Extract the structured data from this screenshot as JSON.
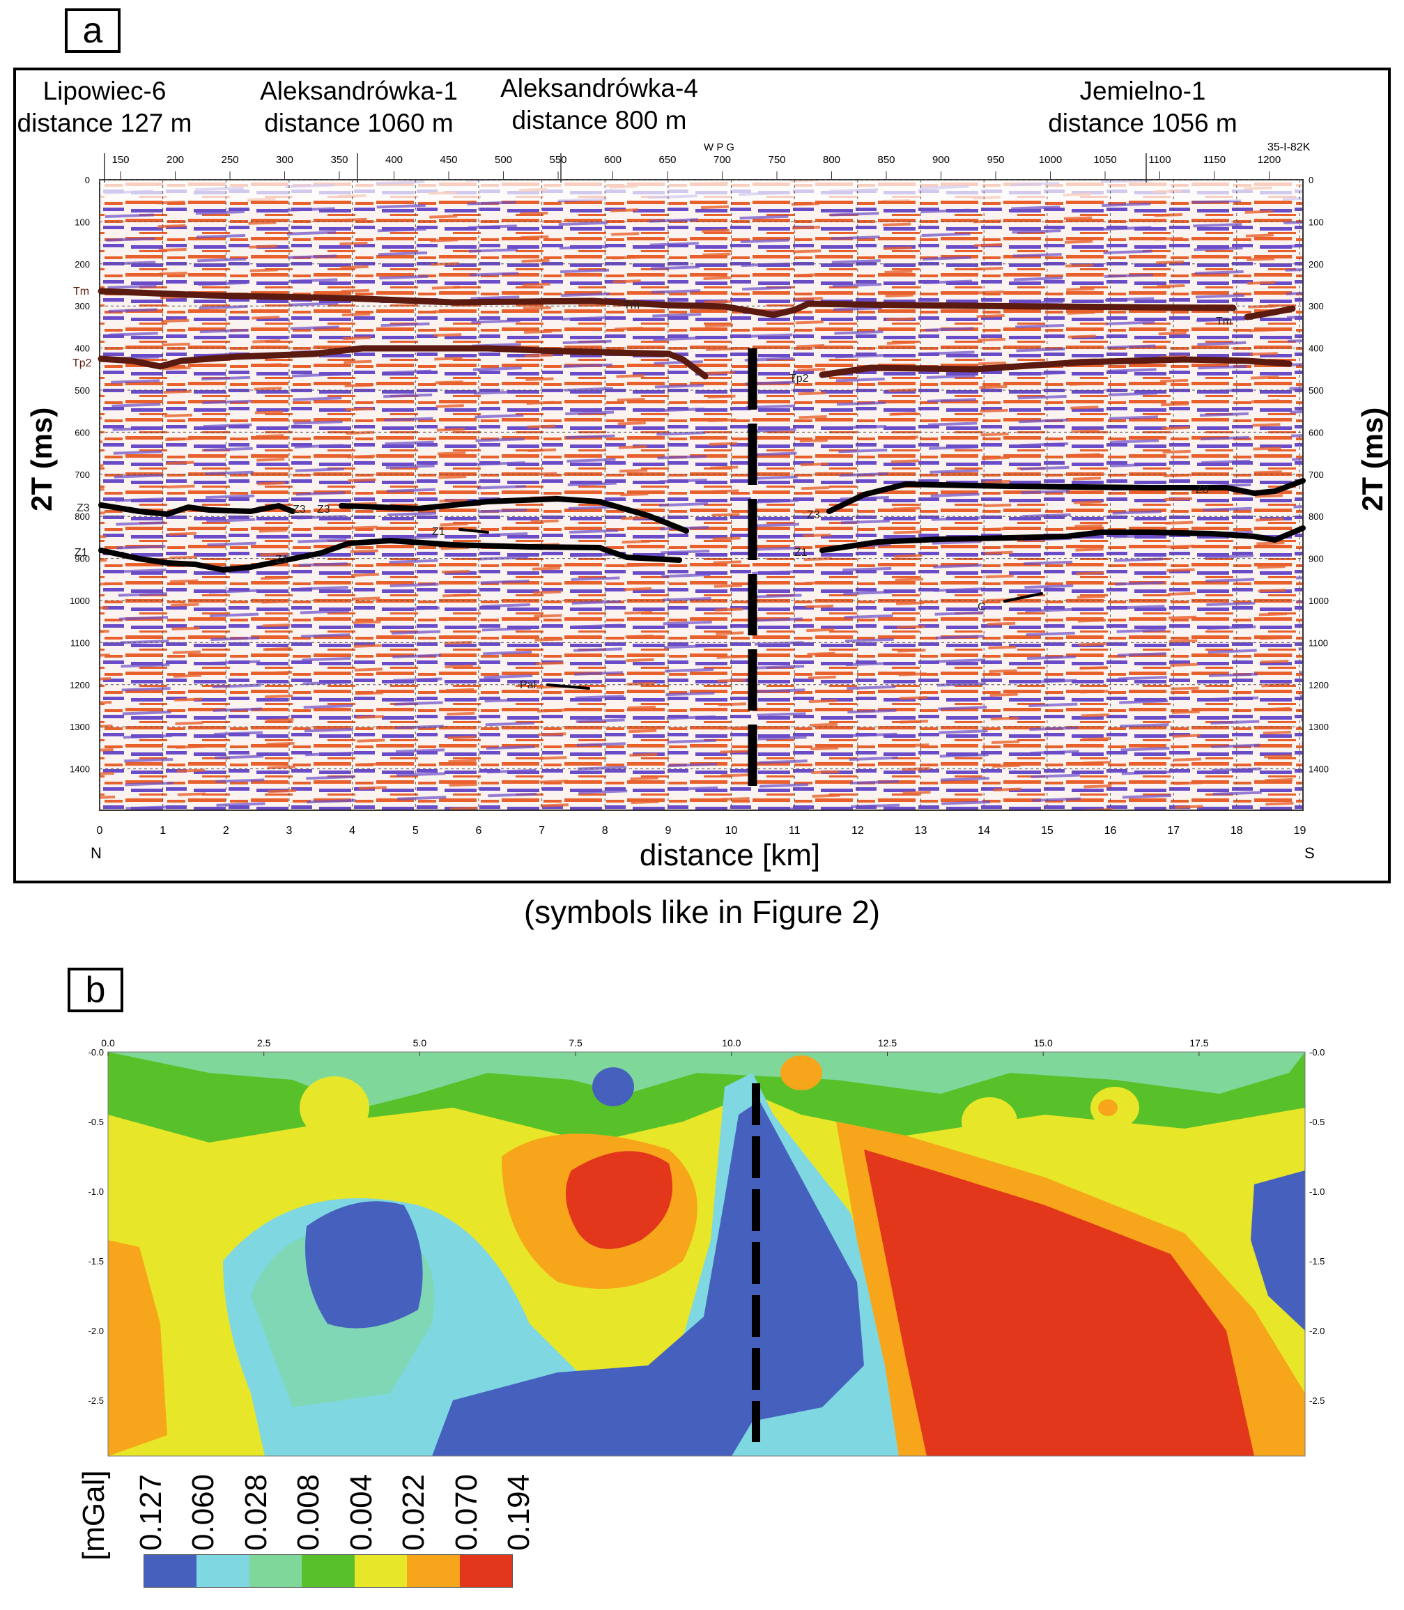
{
  "panel_a": {
    "tag": "a",
    "wells": [
      {
        "name": "Lipowiec-6",
        "distance": "distance 127 m"
      },
      {
        "name": "Aleksandrówka-1",
        "distance": "distance 1060 m"
      },
      {
        "name": "Aleksandrówka-4",
        "distance": "distance 800 m"
      },
      {
        "name": "Jemielno-1",
        "distance": "distance 1056 m"
      }
    ],
    "top_ticks": [
      "150",
      "200",
      "250",
      "300",
      "350",
      "400",
      "450",
      "500",
      "550",
      "600",
      "650",
      "700",
      "750",
      "800",
      "850",
      "900",
      "950",
      "1000",
      "1050",
      "1100",
      "1150",
      "1200"
    ],
    "top_marker": "W P G",
    "line_id": "35-I-82K",
    "time_ticks": [
      "0",
      "100",
      "200",
      "300",
      "400",
      "500",
      "600",
      "700",
      "800",
      "900",
      "1000",
      "1100",
      "1200",
      "1300",
      "1400"
    ],
    "distance_ticks": [
      "0",
      "1",
      "2",
      "3",
      "4",
      "5",
      "6",
      "7",
      "8",
      "9",
      "10",
      "11",
      "12",
      "13",
      "14",
      "15",
      "16",
      "17",
      "18",
      "19"
    ],
    "north_label": "N",
    "south_label": "S",
    "x_label": "distance [km]",
    "y_label_left": "2T (ms)",
    "y_label_right": "2T (ms)",
    "horizon_labels": {
      "tm_left": "Tm",
      "tm_mid": "Tm",
      "tm_right": "Tm",
      "tp2_left": "Tp2",
      "tp2_right": "Tp2",
      "z3_left": "Z3",
      "z3_a": "Z3",
      "z3_b": "Z3",
      "z3_mid": "Z3",
      "z3_right": "Z3",
      "z1_left": "Z1",
      "z1_a": "Z1",
      "z1_b": "Z1",
      "z1_mid": "Z1",
      "c": "C",
      "pal": "Pal"
    },
    "horizon_colors": {
      "Tm": "#5a1a10",
      "Tp2": "#5a1a10",
      "Z3": "#000000",
      "Z1": "#000000"
    },
    "seismic_colors": {
      "positive": "#e8602c",
      "negative": "#6a4bc8"
    }
  },
  "caption": "(symbols like in Figure 2)",
  "panel_b": {
    "tag": "b",
    "x_ticks": [
      "0.0",
      "2.5",
      "5.0",
      "7.5",
      "10.0",
      "12.5",
      "15.0",
      "17.5"
    ],
    "y_ticks": [
      "-0.0",
      "-0.5",
      "-1.0",
      "-1.5",
      "-2.0",
      "-2.5"
    ],
    "y_ticks_right": [
      "-0.0",
      "-0.5",
      "-1.0",
      "-1.5",
      "-2.0",
      "-2.5"
    ],
    "legend_unit": "[mGal]",
    "legend_values": [
      "0.127",
      "0.060",
      "0.028",
      "0.008",
      "0.004",
      "0.022",
      "0.070",
      "0.194"
    ],
    "legend_colors": [
      "#4661bd",
      "#7fd7e2",
      "#80d79a",
      "#58c12a",
      "#e8e628",
      "#f7a51a",
      "#e2371b"
    ]
  }
}
